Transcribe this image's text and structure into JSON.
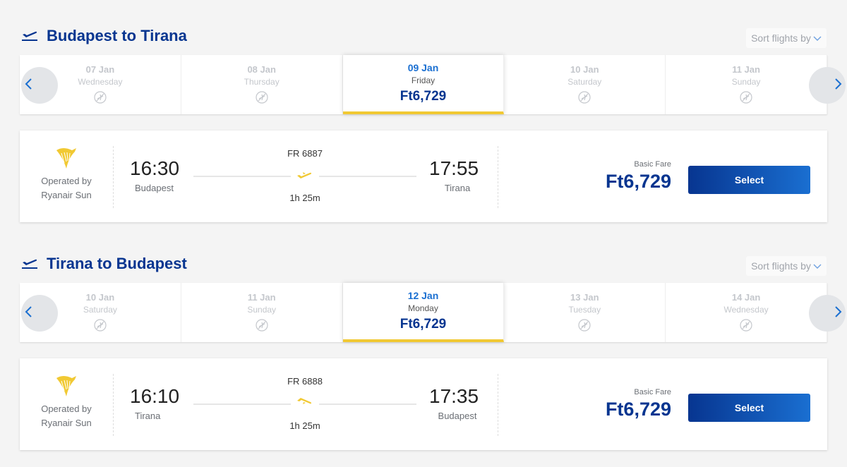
{
  "colors": {
    "brand": "#073590",
    "accent": "#1a6fd1",
    "selected_underline": "#f1c933",
    "logo": "#f1c933"
  },
  "sections": [
    {
      "title": "Budapest to Tirana",
      "sort_label": "Sort flights by",
      "dates": [
        {
          "date": "07 Jan",
          "day": "Wednesday"
        },
        {
          "date": "08 Jan",
          "day": "Thursday"
        },
        {
          "date": "09 Jan",
          "day": "Friday",
          "price": "Ft6,729"
        },
        {
          "date": "10 Jan",
          "day": "Saturday"
        },
        {
          "date": "11 Jan",
          "day": "Sunday"
        }
      ],
      "flight": {
        "operated_by": "Operated by",
        "operator": "Ryanair Sun",
        "dep_time": "16:30",
        "dep_city": "Budapest",
        "flight_no": "FR 6887",
        "duration": "1h 25m",
        "arr_time": "17:55",
        "arr_city": "Tirana",
        "fare_label": "Basic Fare",
        "price": "Ft6,729",
        "select_label": "Select"
      }
    },
    {
      "title": "Tirana to Budapest",
      "sort_label": "Sort flights by",
      "dates": [
        {
          "date": "10 Jan",
          "day": "Saturday"
        },
        {
          "date": "11 Jan",
          "day": "Sunday"
        },
        {
          "date": "12 Jan",
          "day": "Monday",
          "price": "Ft6,729"
        },
        {
          "date": "13 Jan",
          "day": "Tuesday"
        },
        {
          "date": "14 Jan",
          "day": "Wednesday"
        }
      ],
      "flight": {
        "operated_by": "Operated by",
        "operator": "Ryanair Sun",
        "dep_time": "16:10",
        "dep_city": "Tirana",
        "flight_no": "FR 6888",
        "duration": "1h 25m",
        "arr_time": "17:35",
        "arr_city": "Budapest",
        "fare_label": "Basic Fare",
        "price": "Ft6,729",
        "select_label": "Select"
      }
    }
  ]
}
